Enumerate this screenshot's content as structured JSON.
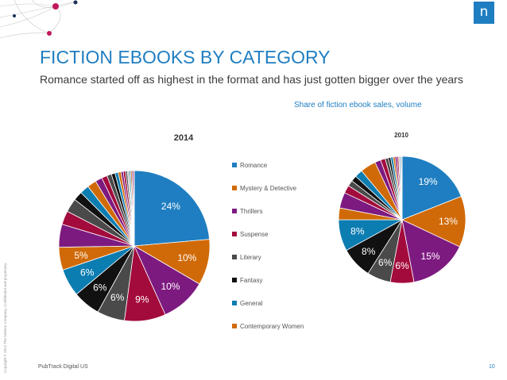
{
  "slide": {
    "title": "FICTION EBOOKS BY CATEGORY",
    "subtitle": "Romance started off as highest in the format and has just gotten bigger over the years",
    "caption": "Share of fiction ebook sales, volume",
    "source": "PubTrack Digital US",
    "page_number": "10",
    "copyright": "Copyright © 2012 The Nielsen Company. Confidential and proprietary.",
    "logo_letter": "n"
  },
  "colors": {
    "accent": "#1f7ec1",
    "deco_magenta": "#c2185b",
    "deco_navy": "#1c2f5a"
  },
  "chart_data": [
    {
      "type": "pie",
      "title": "2014",
      "slices": [
        {
          "label": "Romance",
          "value": 24,
          "color": "#1f7ec1"
        },
        {
          "label": "Mystery & Detective",
          "value": 10,
          "color": "#d06a08"
        },
        {
          "label": "Thrillers",
          "value": 10,
          "color": "#7d1a80"
        },
        {
          "label": "Suspense",
          "value": 9,
          "color": "#a30b3c"
        },
        {
          "label": "Literary",
          "value": 6,
          "color": "#4a4a4a"
        },
        {
          "label": "Fantasy",
          "value": 6,
          "color": "#111111"
        },
        {
          "label": "General",
          "value": 6,
          "color": "#0c7db1"
        },
        {
          "label": "Contemporary Women",
          "value": 5,
          "color": "#d06a08"
        },
        {
          "label": "",
          "value": 5,
          "color": "#7d1a80"
        },
        {
          "label": "",
          "value": 3,
          "color": "#a30b3c"
        },
        {
          "label": "",
          "value": 3,
          "color": "#4a4a4a"
        },
        {
          "label": "",
          "value": 2,
          "color": "#111111"
        },
        {
          "label": "",
          "value": 2,
          "color": "#0c7db1"
        },
        {
          "label": "",
          "value": 2,
          "color": "#d06a08"
        },
        {
          "label": "",
          "value": 1.5,
          "color": "#7d1a80"
        },
        {
          "label": "",
          "value": 1.2,
          "color": "#a30b3c"
        },
        {
          "label": "",
          "value": 1,
          "color": "#4a4a4a"
        },
        {
          "label": "",
          "value": 0.8,
          "color": "#111111"
        },
        {
          "label": "",
          "value": 0.7,
          "color": "#0c7db1"
        },
        {
          "label": "",
          "value": 0.6,
          "color": "#d06a08"
        },
        {
          "label": "",
          "value": 0.5,
          "color": "#7d1a80"
        },
        {
          "label": "",
          "value": 0.5,
          "color": "#a30b3c"
        },
        {
          "label": "",
          "value": 0.4,
          "color": "#4a4a4a"
        },
        {
          "label": "",
          "value": 0.4,
          "color": "#bbbbbb"
        },
        {
          "label": "",
          "value": 0.3,
          "color": "#0c7db1"
        },
        {
          "label": "",
          "value": 0.3,
          "color": "#d06a08"
        },
        {
          "label": "",
          "value": 0.3,
          "color": "#7d1a80"
        },
        {
          "label": "",
          "value": 0.2,
          "color": "#a30b3c"
        }
      ],
      "data_labels": [
        "24%",
        "10%",
        "10%",
        "9%",
        "6%",
        "6%",
        "6%",
        "5%"
      ]
    },
    {
      "type": "pie",
      "title": "2010",
      "slices": [
        {
          "label": "Romance",
          "value": 19,
          "color": "#1f7ec1"
        },
        {
          "label": "Mystery & Detective",
          "value": 13,
          "color": "#d06a08"
        },
        {
          "label": "Thrillers",
          "value": 15,
          "color": "#7d1a80"
        },
        {
          "label": "Suspense",
          "value": 6,
          "color": "#a30b3c"
        },
        {
          "label": "Literary",
          "value": 6,
          "color": "#4a4a4a"
        },
        {
          "label": "Fantasy",
          "value": 8,
          "color": "#111111"
        },
        {
          "label": "General",
          "value": 8,
          "color": "#0c7db1"
        },
        {
          "label": "Contemporary Women",
          "value": 3,
          "color": "#d06a08"
        },
        {
          "label": "",
          "value": 4,
          "color": "#7d1a80"
        },
        {
          "label": "",
          "value": 2,
          "color": "#a30b3c"
        },
        {
          "label": "",
          "value": 1.5,
          "color": "#4a4a4a"
        },
        {
          "label": "",
          "value": 1.5,
          "color": "#111111"
        },
        {
          "label": "",
          "value": 2,
          "color": "#0c7db1"
        },
        {
          "label": "",
          "value": 4,
          "color": "#d06a08"
        },
        {
          "label": "",
          "value": 1.5,
          "color": "#7d1a80"
        },
        {
          "label": "",
          "value": 1.2,
          "color": "#a30b3c"
        },
        {
          "label": "",
          "value": 0.8,
          "color": "#4a4a4a"
        },
        {
          "label": "",
          "value": 0.6,
          "color": "#111111"
        },
        {
          "label": "",
          "value": 0.6,
          "color": "#0c7db1"
        },
        {
          "label": "",
          "value": 0.5,
          "color": "#d06a08"
        },
        {
          "label": "",
          "value": 0.5,
          "color": "#7d1a80"
        },
        {
          "label": "",
          "value": 0.4,
          "color": "#a30b3c"
        },
        {
          "label": "",
          "value": 0.4,
          "color": "#bbbbbb"
        },
        {
          "label": "",
          "value": 0.3,
          "color": "#0c7db1"
        },
        {
          "label": "",
          "value": 0.2,
          "color": "#d06a08"
        }
      ],
      "data_labels": [
        "19%",
        "13%",
        "15%",
        "6%",
        "6%",
        "8%",
        "8%"
      ]
    }
  ],
  "legend": {
    "placement": "center",
    "items": [
      {
        "label": "Romance",
        "color": "#1f7ec1"
      },
      {
        "label": "Mystery & Detective",
        "color": "#d06a08"
      },
      {
        "label": "Thrillers",
        "color": "#7d1a80"
      },
      {
        "label": "Suspense",
        "color": "#a30b3c"
      },
      {
        "label": "Literary",
        "color": "#4a4a4a"
      },
      {
        "label": "Fantasy",
        "color": "#111111"
      },
      {
        "label": "General",
        "color": "#0c7db1"
      },
      {
        "label": "Contemporary Women",
        "color": "#d06a08"
      }
    ]
  }
}
